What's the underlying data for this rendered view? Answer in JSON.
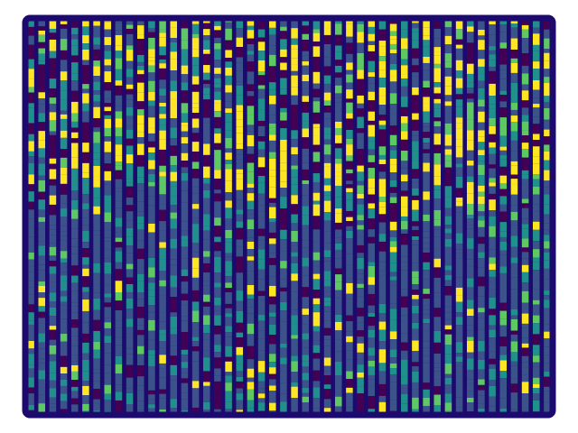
{
  "palette": {
    "frame": "#1c0a6e",
    "background": "#ffffff",
    "ramp": [
      "#440154",
      "#3b528b",
      "#21908c",
      "#5ec962",
      "#fde725"
    ]
  },
  "pattern": {
    "description_kind": "striped-texture",
    "columns": 48,
    "upper_region": "mixed-yellow-teal",
    "lower_region": "blue-teal-dominant"
  }
}
